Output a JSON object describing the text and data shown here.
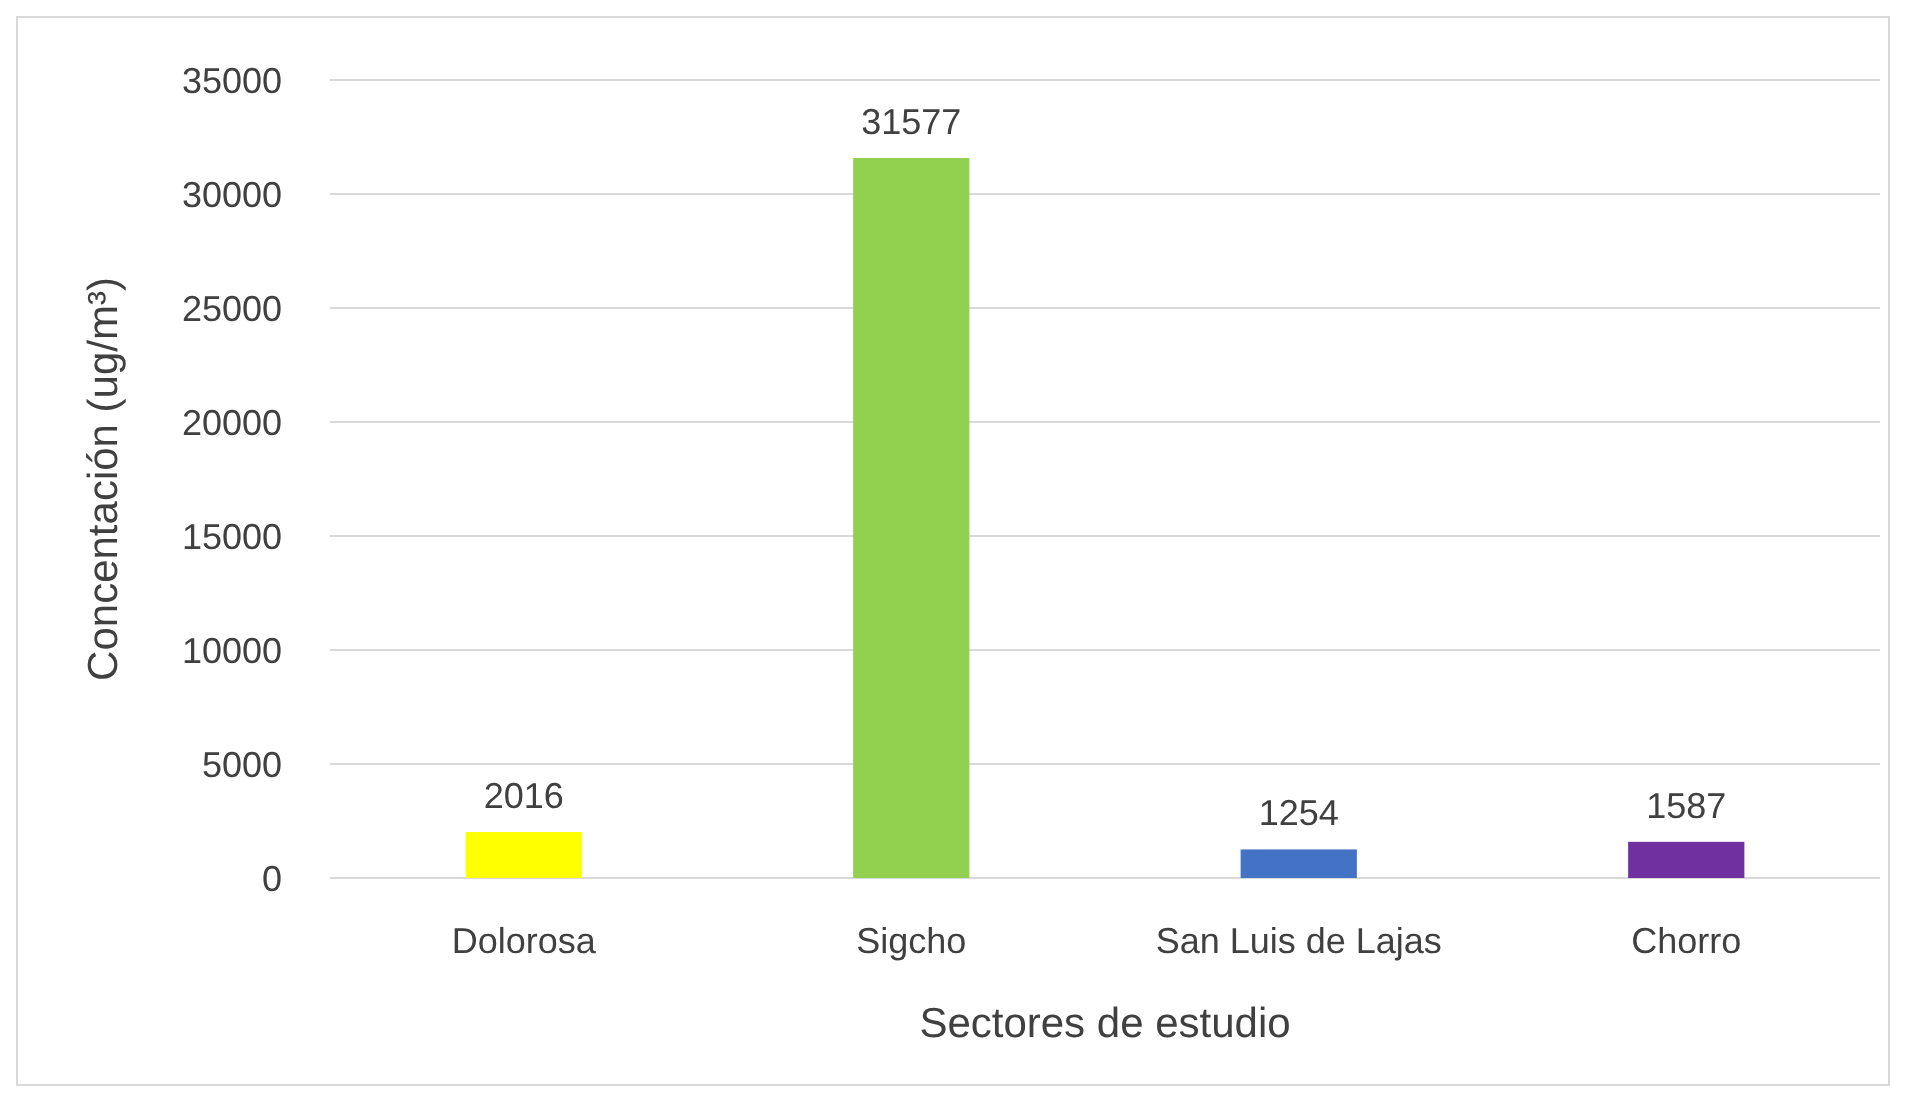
{
  "chart_data": {
    "type": "bar",
    "xlabel": "Sectores de estudio",
    "ylabel": "Concentación (ug/m³)",
    "categories": [
      "Dolorosa",
      "Sigcho",
      "San Luis de Lajas",
      "Chorro"
    ],
    "values": [
      2016,
      31577,
      1254,
      1587
    ],
    "colors": [
      "#ffff00",
      "#92d050",
      "#4472c4",
      "#7030a0"
    ],
    "ylim": [
      0,
      35000
    ],
    "yticks": [
      0,
      5000,
      10000,
      15000,
      20000,
      25000,
      30000,
      35000
    ],
    "grid": "y",
    "data_labels": true
  }
}
